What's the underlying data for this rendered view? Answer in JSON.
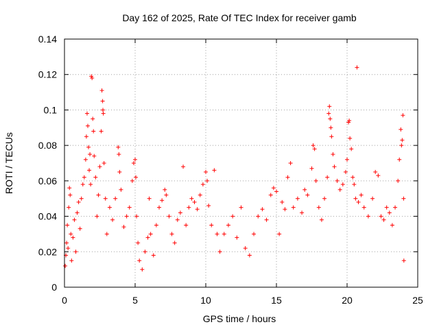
{
  "chart_data": {
    "type": "scatter",
    "title": "Day 162 of 2025, Rate Of TEC Index for receiver gamb",
    "xlabel": "GPS time / hours",
    "ylabel": "ROTI / TECUs",
    "xlim": [
      0,
      25
    ],
    "ylim": [
      0,
      0.14
    ],
    "xticks": [
      0,
      5,
      10,
      15,
      20,
      25
    ],
    "yticks": [
      0,
      0.02,
      0.04,
      0.06,
      0.08,
      0.1,
      0.12,
      0.14
    ],
    "xtick_labels": [
      "0",
      "5",
      "10",
      "15",
      "20",
      "25"
    ],
    "ytick_labels": [
      "0",
      "0.02",
      "0.04",
      "0.06",
      "0.08",
      "0.1",
      "0.12",
      "0.14"
    ],
    "grid": true,
    "marker": "+",
    "color": "#ff0000",
    "series": [
      {
        "name": "gamb",
        "points": [
          [
            0.05,
            0.012
          ],
          [
            0.1,
            0.018
          ],
          [
            0.15,
            0.025
          ],
          [
            0.2,
            0.035
          ],
          [
            0.25,
            0.022
          ],
          [
            0.3,
            0.045
          ],
          [
            0.35,
            0.056
          ],
          [
            0.4,
            0.052
          ],
          [
            0.45,
            0.03
          ],
          [
            0.5,
            0.015
          ],
          [
            0.6,
            0.028
          ],
          [
            0.7,
            0.038
          ],
          [
            0.8,
            0.02
          ],
          [
            0.9,
            0.042
          ],
          [
            1.0,
            0.048
          ],
          [
            1.1,
            0.033
          ],
          [
            1.2,
            0.05
          ],
          [
            1.3,
            0.058
          ],
          [
            1.4,
            0.062
          ],
          [
            1.5,
            0.072
          ],
          [
            1.55,
            0.085
          ],
          [
            1.6,
            0.098
          ],
          [
            1.65,
            0.091
          ],
          [
            1.7,
            0.079
          ],
          [
            1.75,
            0.066
          ],
          [
            1.8,
            0.075
          ],
          [
            1.85,
            0.058
          ],
          [
            1.9,
            0.119
          ],
          [
            1.95,
            0.118
          ],
          [
            2.0,
            0.095
          ],
          [
            2.05,
            0.088
          ],
          [
            2.1,
            0.074
          ],
          [
            2.2,
            0.062
          ],
          [
            2.3,
            0.04
          ],
          [
            2.4,
            0.052
          ],
          [
            2.5,
            0.068
          ],
          [
            2.6,
            0.088
          ],
          [
            2.65,
            0.111
          ],
          [
            2.7,
            0.105
          ],
          [
            2.72,
            0.1
          ],
          [
            2.75,
            0.098
          ],
          [
            2.8,
            0.07
          ],
          [
            2.9,
            0.05
          ],
          [
            3.0,
            0.03
          ],
          [
            3.2,
            0.045
          ],
          [
            3.4,
            0.038
          ],
          [
            3.6,
            0.05
          ],
          [
            3.8,
            0.079
          ],
          [
            3.85,
            0.075
          ],
          [
            3.9,
            0.065
          ],
          [
            4.0,
            0.055
          ],
          [
            4.2,
            0.034
          ],
          [
            4.4,
            0.04
          ],
          [
            4.6,
            0.045
          ],
          [
            4.8,
            0.06
          ],
          [
            4.9,
            0.07
          ],
          [
            5.0,
            0.072
          ],
          [
            5.05,
            0.062
          ],
          [
            5.1,
            0.04
          ],
          [
            5.2,
            0.025
          ],
          [
            5.3,
            0.015
          ],
          [
            5.5,
            0.01
          ],
          [
            5.7,
            0.02
          ],
          [
            5.9,
            0.028
          ],
          [
            6.0,
            0.05
          ],
          [
            6.1,
            0.03
          ],
          [
            6.3,
            0.018
          ],
          [
            6.5,
            0.035
          ],
          [
            6.7,
            0.045
          ],
          [
            6.9,
            0.049
          ],
          [
            7.1,
            0.055
          ],
          [
            7.2,
            0.052
          ],
          [
            7.4,
            0.04
          ],
          [
            7.6,
            0.03
          ],
          [
            7.8,
            0.025
          ],
          [
            8.0,
            0.038
          ],
          [
            8.2,
            0.042
          ],
          [
            8.4,
            0.068
          ],
          [
            8.6,
            0.035
          ],
          [
            8.8,
            0.045
          ],
          [
            9.0,
            0.05
          ],
          [
            9.2,
            0.048
          ],
          [
            9.4,
            0.044
          ],
          [
            9.6,
            0.052
          ],
          [
            9.8,
            0.058
          ],
          [
            10.0,
            0.065
          ],
          [
            10.1,
            0.06
          ],
          [
            10.2,
            0.046
          ],
          [
            10.4,
            0.035
          ],
          [
            10.6,
            0.066
          ],
          [
            10.8,
            0.03
          ],
          [
            11.0,
            0.02
          ],
          [
            11.3,
            0.03
          ],
          [
            11.6,
            0.035
          ],
          [
            11.9,
            0.04
          ],
          [
            12.2,
            0.028
          ],
          [
            12.5,
            0.045
          ],
          [
            12.8,
            0.022
          ],
          [
            13.1,
            0.018
          ],
          [
            13.4,
            0.03
          ],
          [
            13.7,
            0.04
          ],
          [
            14.0,
            0.044
          ],
          [
            14.3,
            0.038
          ],
          [
            14.6,
            0.052
          ],
          [
            14.8,
            0.056
          ],
          [
            15.0,
            0.054
          ],
          [
            15.2,
            0.03
          ],
          [
            15.4,
            0.048
          ],
          [
            15.6,
            0.044
          ],
          [
            15.8,
            0.062
          ],
          [
            16.0,
            0.07
          ],
          [
            16.2,
            0.045
          ],
          [
            16.5,
            0.05
          ],
          [
            16.8,
            0.042
          ],
          [
            17.0,
            0.055
          ],
          [
            17.2,
            0.052
          ],
          [
            17.5,
            0.067
          ],
          [
            17.6,
            0.08
          ],
          [
            17.7,
            0.078
          ],
          [
            17.8,
            0.06
          ],
          [
            18.0,
            0.045
          ],
          [
            18.2,
            0.038
          ],
          [
            18.4,
            0.05
          ],
          [
            18.6,
            0.062
          ],
          [
            18.7,
            0.098
          ],
          [
            18.75,
            0.102
          ],
          [
            18.8,
            0.095
          ],
          [
            18.85,
            0.09
          ],
          [
            18.9,
            0.085
          ],
          [
            19.0,
            0.075
          ],
          [
            19.1,
            0.068
          ],
          [
            19.3,
            0.06
          ],
          [
            19.5,
            0.055
          ],
          [
            19.7,
            0.058
          ],
          [
            19.9,
            0.065
          ],
          [
            20.0,
            0.072
          ],
          [
            20.1,
            0.093
          ],
          [
            20.15,
            0.094
          ],
          [
            20.2,
            0.084
          ],
          [
            20.3,
            0.078
          ],
          [
            20.4,
            0.062
          ],
          [
            20.5,
            0.058
          ],
          [
            20.6,
            0.05
          ],
          [
            20.7,
            0.124
          ],
          [
            20.8,
            0.048
          ],
          [
            21.0,
            0.052
          ],
          [
            21.2,
            0.045
          ],
          [
            21.5,
            0.04
          ],
          [
            21.8,
            0.05
          ],
          [
            22.0,
            0.065
          ],
          [
            22.2,
            0.063
          ],
          [
            22.4,
            0.04
          ],
          [
            22.6,
            0.038
          ],
          [
            22.8,
            0.045
          ],
          [
            23.0,
            0.042
          ],
          [
            23.2,
            0.035
          ],
          [
            23.4,
            0.045
          ],
          [
            23.6,
            0.06
          ],
          [
            23.7,
            0.072
          ],
          [
            23.8,
            0.089
          ],
          [
            23.85,
            0.08
          ],
          [
            23.9,
            0.083
          ],
          [
            23.95,
            0.097
          ],
          [
            24.0,
            0.05
          ],
          [
            24.02,
            0.015
          ]
        ]
      }
    ]
  }
}
